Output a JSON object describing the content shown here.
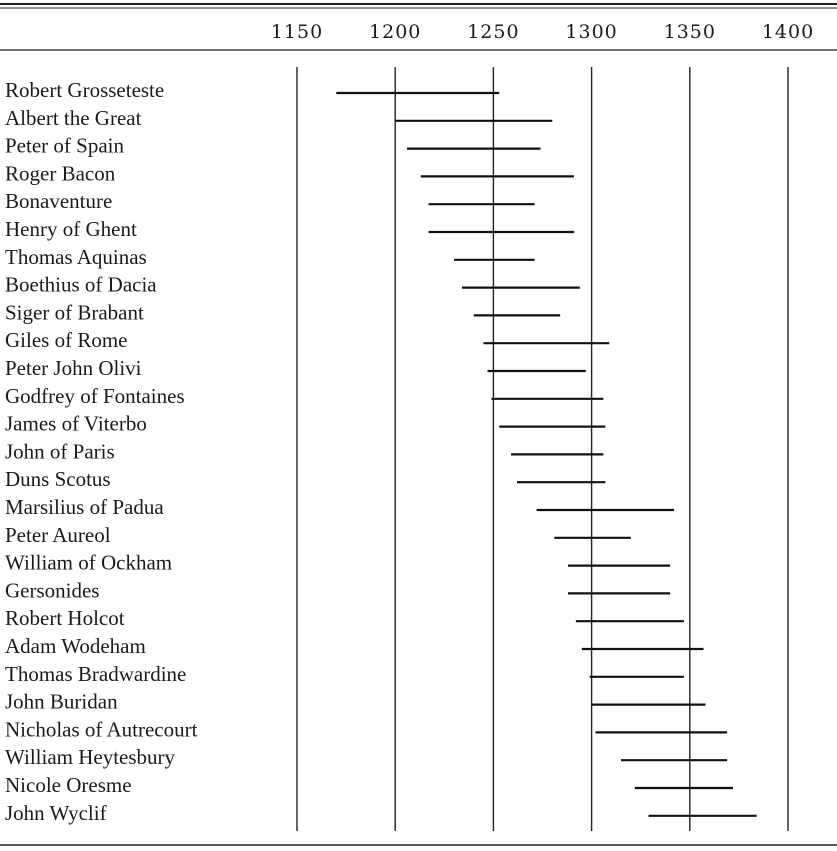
{
  "chart_data": {
    "type": "range",
    "x_ticks": [
      1150,
      1200,
      1250,
      1300,
      1350,
      1400
    ],
    "xlim": [
      1150,
      1400
    ],
    "grid": "vertical lines at ticks",
    "rows": [
      {
        "name": "Robert Grosseteste",
        "start": 1170,
        "end": 1253
      },
      {
        "name": "Albert the Great",
        "start": 1200,
        "end": 1280
      },
      {
        "name": "Peter of Spain",
        "start": 1206,
        "end": 1274
      },
      {
        "name": "Roger Bacon",
        "start": 1213,
        "end": 1291
      },
      {
        "name": "Bonaventure",
        "start": 1217,
        "end": 1271
      },
      {
        "name": "Henry of Ghent",
        "start": 1217,
        "end": 1291
      },
      {
        "name": "Thomas Aquinas",
        "start": 1230,
        "end": 1271
      },
      {
        "name": "Boethius of Dacia",
        "start": 1234,
        "end": 1294
      },
      {
        "name": "Siger of Brabant",
        "start": 1240,
        "end": 1284
      },
      {
        "name": "Giles of Rome",
        "start": 1245,
        "end": 1309
      },
      {
        "name": "Peter John Olivi",
        "start": 1247,
        "end": 1297
      },
      {
        "name": "Godfrey of Fontaines",
        "start": 1249,
        "end": 1306
      },
      {
        "name": "James of Viterbo",
        "start": 1253,
        "end": 1307
      },
      {
        "name": "John of Paris",
        "start": 1259,
        "end": 1306
      },
      {
        "name": "Duns Scotus",
        "start": 1262,
        "end": 1307
      },
      {
        "name": "Marsilius of Padua",
        "start": 1272,
        "end": 1342
      },
      {
        "name": "Peter Aureol",
        "start": 1281,
        "end": 1320
      },
      {
        "name": "William of Ockham",
        "start": 1288,
        "end": 1340
      },
      {
        "name": "Gersonides",
        "start": 1288,
        "end": 1340
      },
      {
        "name": "Robert Holcot",
        "start": 1292,
        "end": 1347
      },
      {
        "name": "Adam Wodeham",
        "start": 1295,
        "end": 1357
      },
      {
        "name": "Thomas Bradwardine",
        "start": 1299,
        "end": 1347
      },
      {
        "name": "John Buridan",
        "start": 1300,
        "end": 1358
      },
      {
        "name": "Nicholas of Autrecourt",
        "start": 1302,
        "end": 1369
      },
      {
        "name": "William Heytesbury",
        "start": 1315,
        "end": 1369
      },
      {
        "name": "Nicole Oresme",
        "start": 1322,
        "end": 1372
      },
      {
        "name": "John Wyclif",
        "start": 1329,
        "end": 1384
      }
    ]
  }
}
